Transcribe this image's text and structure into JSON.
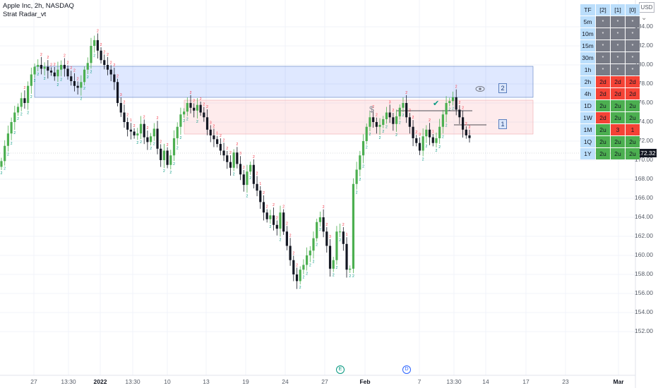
{
  "header": {
    "symbol_line": "Apple Inc, 2h, NASDAQ",
    "indicator_name": "Strat Radar_vt"
  },
  "currency_button": "USD",
  "last_price": "172.32",
  "y_axis": {
    "labels": [
      "184.00",
      "182.00",
      "180.00",
      "178.00",
      "176.00",
      "174.00",
      "172.00",
      "170.00",
      "168.00",
      "166.00",
      "164.00",
      "162.00",
      "160.00",
      "158.00",
      "156.00",
      "154.00",
      "152.00"
    ]
  },
  "x_axis": {
    "labels": [
      "27",
      "13:30",
      "2022",
      "13:30",
      "10",
      "13",
      "19",
      "24",
      "27",
      "Feb",
      "7",
      "13:30",
      "14",
      "17",
      "23",
      "Mar"
    ]
  },
  "zones": [
    {
      "label": "2",
      "color": "#2962ff"
    },
    {
      "label": "1",
      "color": "#f23645"
    }
  ],
  "markers": {
    "dollar": "$",
    "check": "✔",
    "eye": "eye-icon"
  },
  "events": [
    {
      "label": "E",
      "color": "#089981"
    },
    {
      "label": "D",
      "color": "#2962ff"
    }
  ],
  "radar": {
    "header": [
      "TF",
      "[2]",
      "[1]",
      "[0]"
    ],
    "rows": [
      {
        "tf": "5m",
        "cells": [
          "*",
          "*",
          "*"
        ]
      },
      {
        "tf": "10m",
        "cells": [
          "*",
          "*",
          "*"
        ]
      },
      {
        "tf": "15m",
        "cells": [
          "*",
          "*",
          "*"
        ]
      },
      {
        "tf": "30m",
        "cells": [
          "*",
          "*",
          "*"
        ]
      },
      {
        "tf": "1h",
        "cells": [
          "*",
          "*",
          "*"
        ]
      },
      {
        "tf": "2h",
        "cells": [
          "2d",
          "2d",
          "2d"
        ]
      },
      {
        "tf": "4h",
        "cells": [
          "2d",
          "2d",
          "2d"
        ]
      },
      {
        "tf": "1D",
        "cells": [
          "2u",
          "2u",
          "2u"
        ]
      },
      {
        "tf": "1W",
        "cells": [
          "2d",
          "2u",
          "2u"
        ]
      },
      {
        "tf": "1M",
        "cells": [
          "2u",
          "3",
          "1"
        ]
      },
      {
        "tf": "1Q",
        "cells": [
          "2u",
          "2u",
          "2u"
        ]
      },
      {
        "tf": "1Y",
        "cells": [
          "2u",
          "2u",
          "2u"
        ]
      }
    ]
  },
  "colors": {
    "up": "#4caf50",
    "down": "#131722",
    "label_up": "#089981",
    "label_down": "#f23645"
  },
  "chart_data": {
    "type": "candlestick",
    "note_units": "USD",
    "ylim": [
      152,
      185
    ],
    "candles_close": [
      169.9,
      171.5,
      172.8,
      174.0,
      175.0,
      175.6,
      176.5,
      176.0,
      177.8,
      179.0,
      179.8,
      180.0,
      179.6,
      179.8,
      179.4,
      179.2,
      178.8,
      179.5,
      180.0,
      179.6,
      178.8,
      178.3,
      177.8,
      177.6,
      178.2,
      179.5,
      180.2,
      182.0,
      182.6,
      181.5,
      180.5,
      180.0,
      179.5,
      179.0,
      178.2,
      176.0,
      175.0,
      174.0,
      173.2,
      173.0,
      172.6,
      172.8,
      173.8,
      172.4,
      171.9,
      172.5,
      173.3,
      171.2,
      170.0,
      171.0,
      169.5,
      170.5,
      172.3,
      173.5,
      174.8,
      175.1,
      176.0,
      175.5,
      175.2,
      175.8,
      175.0,
      174.5,
      173.2,
      172.6,
      172.2,
      171.7,
      171.0,
      170.5,
      169.8,
      169.2,
      170.8,
      169.6,
      168.5,
      167.4,
      168.8,
      169.5,
      167.5,
      166.8,
      165.6,
      164.5,
      163.8,
      164.2,
      163.2,
      162.8,
      164.5,
      162.5,
      161.0,
      159.5,
      158.0,
      157.3,
      158.5,
      159.0,
      160.0,
      160.5,
      161.8,
      163.5,
      164.0,
      162.5,
      161.0,
      158.6,
      159.5,
      162.5,
      162.5,
      161.2,
      158.5,
      158.6,
      167.5,
      169.0,
      170.5,
      172.0,
      173.5,
      174.5,
      174.0,
      173.5,
      173.7,
      174.3,
      175.0,
      174.5,
      173.8,
      174.6,
      175.5,
      176.0,
      174.5,
      173.5,
      172.3,
      171.8,
      171.0,
      172.5,
      173.2,
      172.4,
      171.8,
      172.3,
      173.5,
      174.8,
      176.0,
      176.2,
      176.6,
      175.3,
      174.5,
      173.2,
      172.6,
      172.32
    ]
  }
}
